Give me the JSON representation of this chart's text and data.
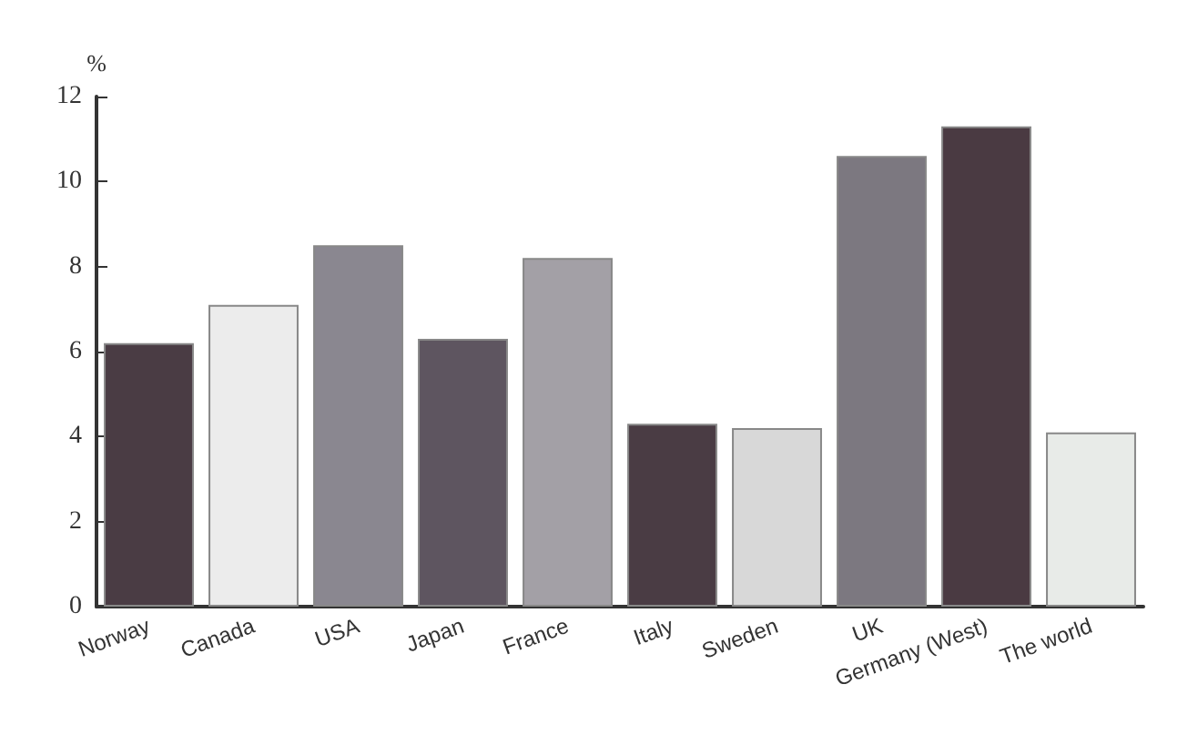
{
  "chart_data": {
    "type": "bar",
    "ylabel": "%",
    "categories": [
      "Norway",
      "Canada",
      "USA",
      "Japan",
      "France",
      "Italy",
      "Sweden",
      "UK",
      "Germany (West)",
      "The world"
    ],
    "values": [
      6.2,
      7.1,
      8.5,
      6.3,
      8.2,
      4.3,
      4.2,
      10.6,
      11.3,
      4.1
    ],
    "colors": [
      "#4a3c44",
      "#ececec",
      "#8a8790",
      "#5e5560",
      "#a3a0a6",
      "#4a3c44",
      "#d8d8d8",
      "#7c7880",
      "#4a3a42",
      "#e8ebe8"
    ],
    "ylim": [
      0,
      12
    ],
    "yticks": [
      0,
      2,
      4,
      6,
      8,
      10,
      12
    ],
    "grid": false
  }
}
